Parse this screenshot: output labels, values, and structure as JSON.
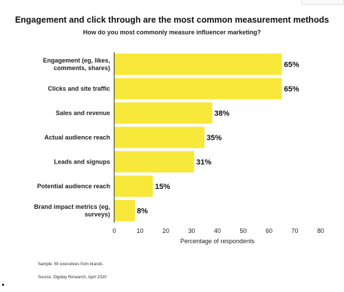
{
  "colors": {
    "bar": "#f8e83a",
    "axis": "#222222",
    "text": "#111111"
  },
  "chart_data": {
    "type": "bar",
    "orientation": "horizontal",
    "title": "Engagement and click through are the most common measurement methods",
    "subtitle": "How do you most commonly measure influencer marketing?",
    "categories": [
      [
        "Engagement (eg, likes,",
        "comments, shares)"
      ],
      [
        "Clicks and site traffic"
      ],
      [
        "Sales and revenue"
      ],
      [
        "Actual audience reach"
      ],
      [
        "Leads and signups"
      ],
      [
        "Potential audience reach"
      ],
      [
        "Brand impact metrics (eg,",
        "surveys)"
      ]
    ],
    "values": [
      65,
      65,
      38,
      35,
      31,
      15,
      8
    ],
    "value_labels": [
      "65%",
      "65%",
      "38%",
      "35%",
      "31%",
      "15%",
      "8%"
    ],
    "xlabel": "Percentage of respondents",
    "xlim": [
      0,
      80
    ],
    "xticks": [
      0,
      10,
      20,
      30,
      40,
      50,
      60,
      70,
      80
    ],
    "grid": false
  },
  "notes": {
    "sample": "Sample: 60 executives from brands",
    "source": "Source: Digiday Research, April 2020"
  }
}
